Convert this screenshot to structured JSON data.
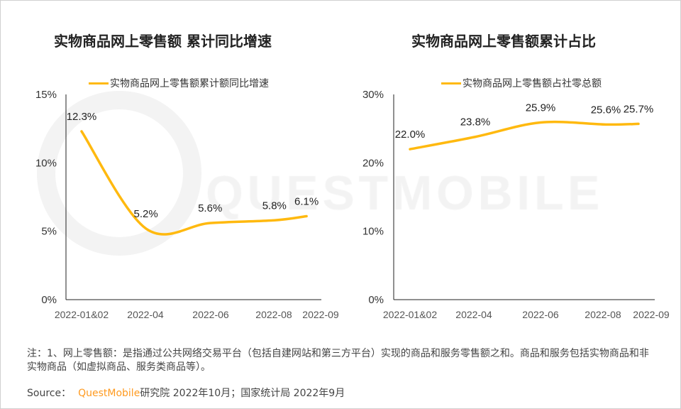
{
  "chart_data": [
    {
      "type": "line",
      "title": "实物商品网上零售额 累计同比增速",
      "categories": [
        "2022-01&02",
        "2022-04",
        "2022-06",
        "2022-08",
        "2022-09"
      ],
      "series": [
        {
          "name": "实物商品网上零售额累计额同比增速",
          "values": [
            12.3,
            5.2,
            5.6,
            5.8,
            6.1
          ],
          "labels": [
            "12.3%",
            "5.2%",
            "5.6%",
            "5.8%",
            "6.1%"
          ]
        }
      ],
      "yticks": [
        "0%",
        "5%",
        "10%",
        "15%"
      ],
      "ylim": [
        0,
        15
      ],
      "legend": "top",
      "grid": false,
      "color": "#FFB90F"
    },
    {
      "type": "line",
      "title": "实物商品网上零售额累计占比",
      "categories": [
        "2022-01&02",
        "2022-04",
        "2022-06",
        "2022-08",
        "2022-09"
      ],
      "series": [
        {
          "name": "实物商品网上零售额占社零总额",
          "values": [
            22.0,
            23.8,
            25.9,
            25.6,
            25.7
          ],
          "labels": [
            "22.0%",
            "23.8%",
            "25.9%",
            "25.6%",
            "25.7%"
          ]
        }
      ],
      "yticks": [
        "0%",
        "10%",
        "20%",
        "30%"
      ],
      "ylim": [
        0,
        30
      ],
      "legend": "top",
      "grid": false,
      "color": "#FFB90F"
    }
  ],
  "watermark": "QUESTMOBILE",
  "note": "注：1、网上零售额：是指通过公共网络交易平台（包括自建网站和第三方平台）实现的商品和服务零售额之和。商品和服务包括实物商品和非实物商品（如虚拟商品、服务类商品等）。",
  "source": {
    "label": "Source：",
    "brand": "QuestMobile",
    "text": "研究院 2022年10月；国家统计局 2022年9月"
  }
}
